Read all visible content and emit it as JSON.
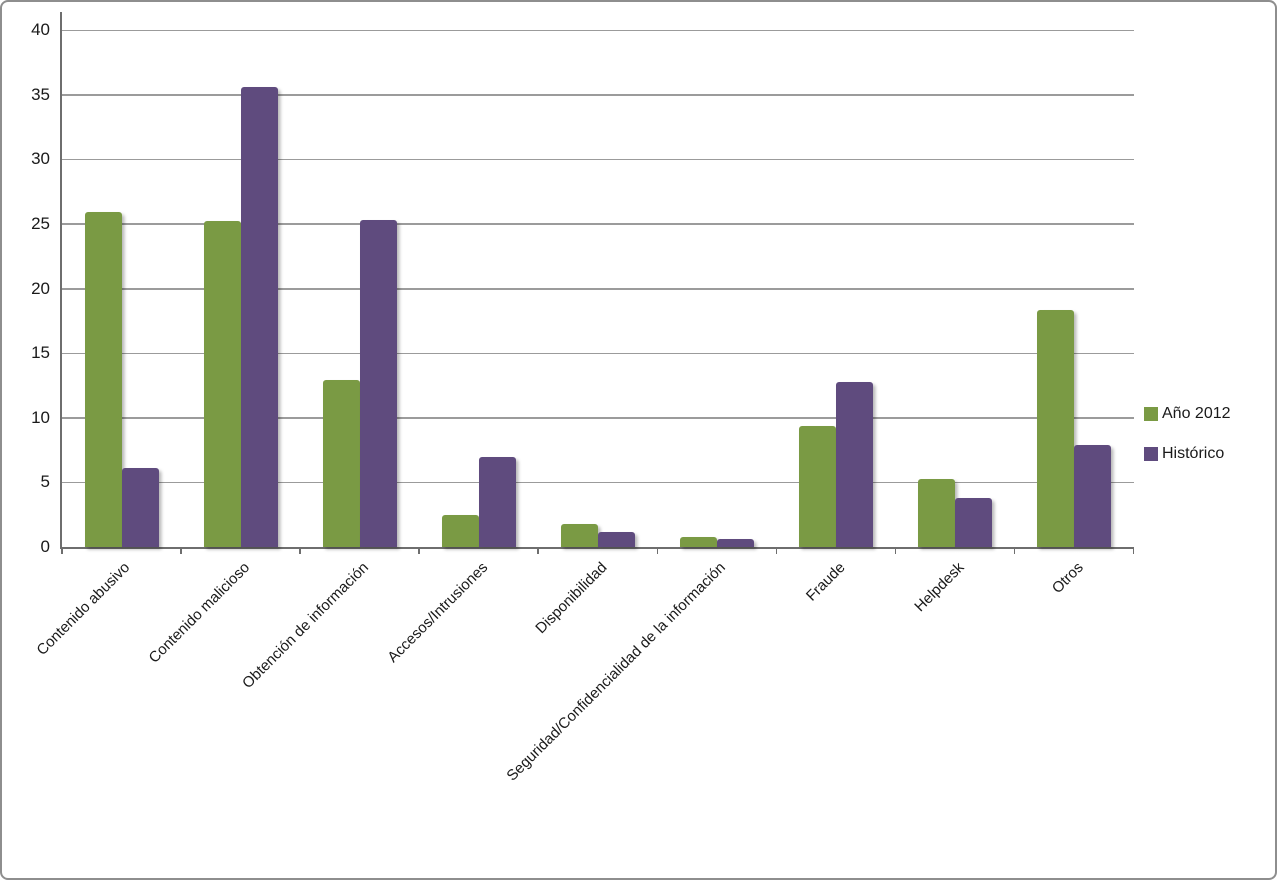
{
  "chart_data": {
    "type": "bar",
    "title": "",
    "xlabel": "",
    "ylabel": "",
    "categories": [
      "Contenido abusivo",
      "Contenido malicioso",
      "Obtención de información",
      "Accesos/Intrusiones",
      "Disponibilidad",
      "Seguridad/Confidencialidad de la información",
      "Fraude",
      "Helpdesk",
      "Otros"
    ],
    "series": [
      {
        "name": "Año 2012",
        "color": "#7a9a44",
        "values": [
          25.9,
          25.2,
          12.9,
          2.5,
          1.8,
          0.8,
          9.4,
          5.3,
          18.3
        ]
      },
      {
        "name": "Histórico",
        "color": "#5f4b7e",
        "values": [
          6.1,
          35.6,
          25.3,
          7.0,
          1.2,
          0.6,
          12.8,
          3.8,
          7.9
        ]
      }
    ],
    "ylim": [
      0,
      40
    ],
    "yticks": [
      0,
      5,
      10,
      15,
      20,
      25,
      30,
      35,
      40
    ],
    "grid": true,
    "legend_position": "right"
  },
  "legend": {
    "items": [
      {
        "label": "Año 2012"
      },
      {
        "label": "Histórico"
      }
    ]
  }
}
